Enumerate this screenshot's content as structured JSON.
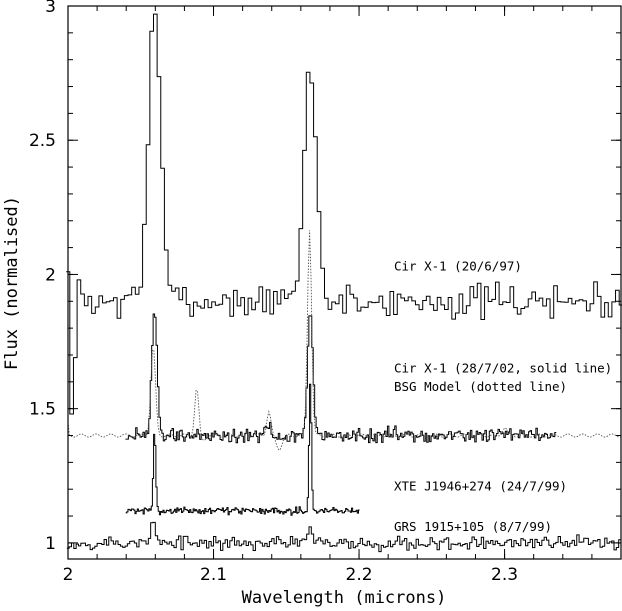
{
  "chart_data": {
    "type": "line",
    "xlabel": "Wavelength (microns)",
    "ylabel": "Flux (normalised)",
    "xlim": [
      2.0,
      2.38
    ],
    "ylim": [
      0.94,
      3.0
    ],
    "x_ticks": [
      {
        "value": 2.0,
        "label": "2"
      },
      {
        "value": 2.1,
        "label": "2.1"
      },
      {
        "value": 2.2,
        "label": "2.2"
      },
      {
        "value": 2.3,
        "label": "2.3"
      }
    ],
    "y_ticks": [
      {
        "value": 1.0,
        "label": "1"
      },
      {
        "value": 1.5,
        "label": "1.5"
      },
      {
        "value": 2.0,
        "label": "2"
      },
      {
        "value": 2.5,
        "label": "2.5"
      },
      {
        "value": 3.0,
        "label": "3"
      }
    ],
    "annotations": [
      {
        "text": "Cir X-1 (20/6/97)",
        "x": 2.224,
        "y": 2.015
      },
      {
        "text": "Cir X-1 (28/7/02, solid line)",
        "x": 2.224,
        "y": 1.635
      },
      {
        "text": "BSG Model (dotted line)",
        "x": 2.224,
        "y": 1.565
      },
      {
        "text": "XTE J1946+274 (24/7/99)",
        "x": 2.224,
        "y": 1.195
      },
      {
        "text": "GRS 1915+105 (8/7/99)",
        "x": 2.224,
        "y": 1.045
      }
    ],
    "series": [
      {
        "style": "solid-step",
        "label_ref": "Cir X-1 (20/6/97)",
        "x_range": [
          2.0,
          2.38
        ],
        "baseline": 1.9,
        "noise": 0.06,
        "step": 0.0025,
        "seed": 7,
        "lines": [
          {
            "center": 2.0595,
            "height": 1.1,
            "sigma": 0.0042
          },
          {
            "center": 2.1665,
            "height": 0.88,
            "sigma": 0.0042
          }
        ],
        "spikes": [
          {
            "x": 2.0,
            "y": 2.01
          },
          {
            "x": 2.0025,
            "y": 1.48
          },
          {
            "x": 2.005,
            "y": 1.69
          },
          {
            "x": 2.0075,
            "y": 1.98
          }
        ]
      },
      {
        "style": "solid-step",
        "label_ref": "Cir X-1 (28/7/02, solid line)",
        "x_range": [
          2.04,
          2.335
        ],
        "baseline": 1.4,
        "noise": 0.028,
        "step": 0.001,
        "seed": 19,
        "lines": [
          {
            "center": 2.0595,
            "height": 0.47,
            "sigma": 0.0018
          },
          {
            "center": 2.1665,
            "height": 0.47,
            "sigma": 0.0018
          },
          {
            "center": 2.138,
            "height": 0.04,
            "sigma": 0.0018
          }
        ],
        "spikes": []
      },
      {
        "style": "dotted",
        "label_ref": "BSG Model (dotted line)",
        "x_range": [
          2.0,
          2.38
        ],
        "baseline": 1.4,
        "noise": 0.0,
        "step": 0.001,
        "seed": 0,
        "lines": [
          {
            "center": 2.0585,
            "height": 0.33,
            "sigma": 0.0016
          },
          {
            "center": 2.0885,
            "height": 0.18,
            "sigma": 0.0014
          },
          {
            "center": 2.138,
            "height": 0.09,
            "sigma": 0.0014
          },
          {
            "center": 2.166,
            "height": 0.77,
            "sigma": 0.0014
          },
          {
            "center": 2.3,
            "height": 0.03,
            "sigma": 0.0015
          }
        ],
        "absorptions": [
          {
            "center": 2.145,
            "depth": 0.05,
            "sigma": 0.002
          },
          {
            "center": 2.092,
            "depth": 0.02,
            "sigma": 0.002
          }
        ],
        "spikes": [
          {
            "x": 2.0,
            "y": 1.45
          },
          {
            "x": 2.001,
            "y": 1.4
          }
        ]
      },
      {
        "style": "solid-step",
        "label_ref": "XTE J1946+274 (24/7/99)",
        "x_range": [
          2.04,
          2.2
        ],
        "baseline": 1.12,
        "noise": 0.012,
        "step": 0.0008,
        "seed": 31,
        "lines": [
          {
            "center": 2.0595,
            "height": 0.3,
            "sigma": 0.0008
          },
          {
            "center": 2.1665,
            "height": 0.47,
            "sigma": 0.0008
          }
        ],
        "spikes": []
      },
      {
        "style": "solid-step",
        "label_ref": "GRS 1915+105 (8/7/99)",
        "x_range": [
          2.0,
          2.38
        ],
        "baseline": 1.0,
        "noise": 0.025,
        "step": 0.0016,
        "seed": 53,
        "lines": [
          {
            "center": 2.0585,
            "height": 0.09,
            "sigma": 0.0012
          },
          {
            "center": 2.166,
            "height": 0.06,
            "sigma": 0.0012
          }
        ],
        "spikes": []
      }
    ],
    "grid": false,
    "legend": "none"
  }
}
